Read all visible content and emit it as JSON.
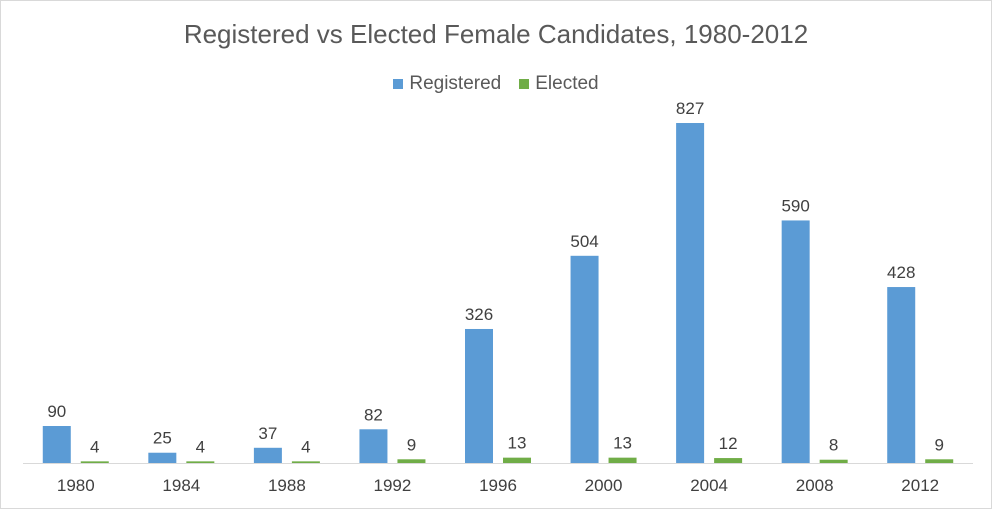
{
  "chart_data": {
    "type": "bar",
    "title": "Registered vs Elected Female Candidates, 1980-2012",
    "categories": [
      "1980",
      "1984",
      "1988",
      "1992",
      "1996",
      "2000",
      "2004",
      "2008",
      "2012"
    ],
    "series": [
      {
        "name": "Registered",
        "color": "#5b9bd5",
        "values": [
          90,
          25,
          37,
          82,
          326,
          504,
          827,
          590,
          428
        ]
      },
      {
        "name": "Elected",
        "color": "#70ad47",
        "values": [
          4,
          4,
          4,
          9,
          13,
          13,
          12,
          8,
          9
        ]
      }
    ],
    "xlabel": "",
    "ylabel": "",
    "ylim": [
      0,
      900
    ],
    "grid": false,
    "legend_position": "top-center",
    "data_labels": true
  }
}
